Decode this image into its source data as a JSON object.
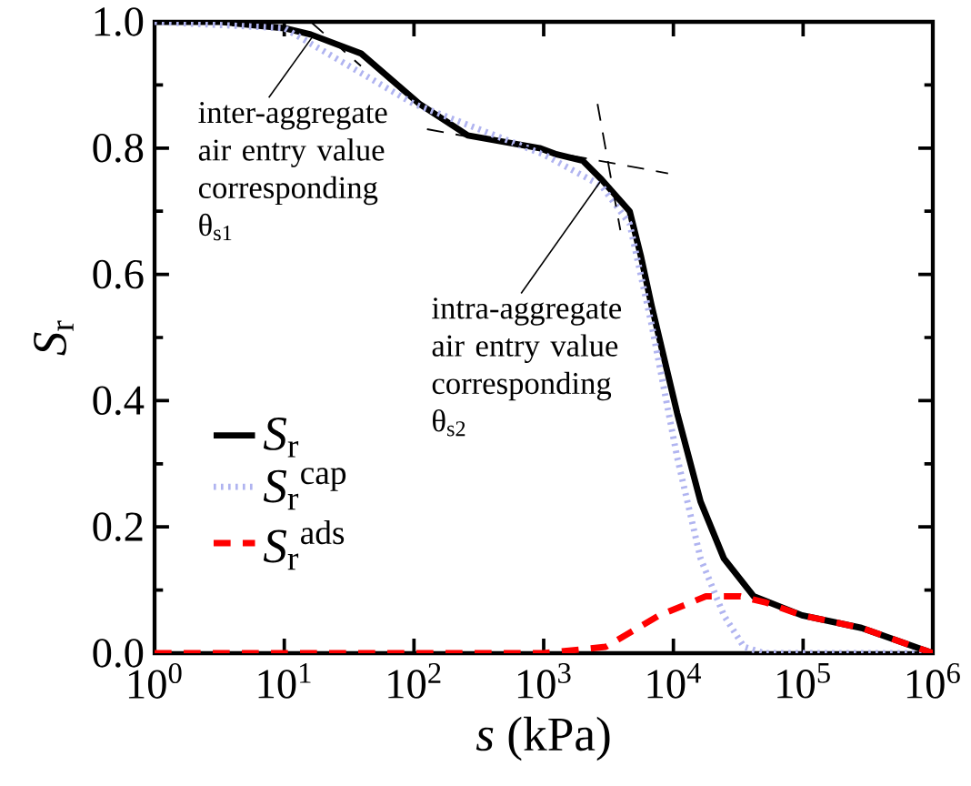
{
  "chart_data": {
    "type": "line",
    "xlabel": "*s* (kPa)",
    "ylabel": "*S*$_{r}$",
    "log": "x",
    "legend": "left",
    "xlim": [
      1,
      1000000
    ],
    "ylim": [
      0,
      1
    ],
    "xticks": [
      {
        "value": 1,
        "label": "10$^{0}$"
      },
      {
        "value": 10,
        "label": "10$^{1}$"
      },
      {
        "value": 100,
        "label": "10$^{2}$"
      },
      {
        "value": 1000,
        "label": "10$^{3}$"
      },
      {
        "value": 10000,
        "label": "10$^{4}$"
      },
      {
        "value": 100000,
        "label": "10$^{5}$"
      },
      {
        "value": 1000000,
        "label": "10$^{6}$"
      }
    ],
    "yticks": [
      {
        "value": 0,
        "label": "0.0"
      },
      {
        "value": 0.2,
        "label": "0.2"
      },
      {
        "value": 0.4,
        "label": "0.4"
      },
      {
        "value": 0.6,
        "label": "0.6"
      },
      {
        "value": 0.8,
        "label": "0.8"
      },
      {
        "value": 1,
        "label": "1.0"
      }
    ],
    "series": [
      {
        "name": "*S*$_{r}$",
        "color": "#000000",
        "line_style": "solid",
        "x": [
          1,
          3.2,
          10,
          16,
          39,
          110,
          260,
          930,
          1260,
          2000,
          2800,
          4600,
          5600,
          6800,
          10700,
          16200,
          24500,
          41700,
          98000,
          282000,
          1000000
        ],
        "values": [
          1.0,
          1.0,
          0.99,
          0.98,
          0.95,
          0.87,
          0.82,
          0.8,
          0.79,
          0.78,
          0.75,
          0.7,
          0.63,
          0.55,
          0.38,
          0.24,
          0.15,
          0.09,
          0.06,
          0.04,
          0.0
        ]
      },
      {
        "name": "*S*$_{r}$$^{cap}$",
        "color": "#b0b4f0",
        "line_style": "dotted",
        "x": [
          1,
          10,
          100,
          1000,
          2800,
          4600,
          6800,
          10700,
          16200,
          24500,
          35000,
          50000,
          1000000
        ],
        "values": [
          1.0,
          0.99,
          0.87,
          0.79,
          0.74,
          0.68,
          0.52,
          0.31,
          0.15,
          0.06,
          0.01,
          0.0,
          0.0
        ]
      },
      {
        "name": "*S*$_{r}$$^{ads}$",
        "color": "#ff0000",
        "line_style": "dashed",
        "x": [
          1,
          1000,
          3000,
          7800,
          17800,
          33000,
          52000,
          98000,
          282000,
          1000000
        ],
        "values": [
          0.0,
          0.0,
          0.01,
          0.06,
          0.09,
          0.09,
          0.08,
          0.06,
          0.04,
          0.0
        ]
      },
      {
        "color": "#000000",
        "line_style": "dashed",
        "x": [
          16,
          39
        ],
        "values": [
          1.0,
          0.93
        ]
      },
      {
        "color": "#000000",
        "line_style": "dashed",
        "x": [
          126,
          9100
        ],
        "values": [
          0.83,
          0.76
        ]
      },
      {
        "color": "#000000",
        "line_style": "dashed",
        "x": [
          2600,
          3900
        ],
        "values": [
          0.87,
          0.67
        ]
      }
    ],
    "annotations": [
      {
        "text": "inter-aggregate air entry value corresponding θ$_{s1}$",
        "x": 17,
        "y": 0.98
      },
      {
        "text": "intra-aggregate air entry value corresponding θ$_{s2}$",
        "x": 2800,
        "y": 0.75
      }
    ]
  }
}
